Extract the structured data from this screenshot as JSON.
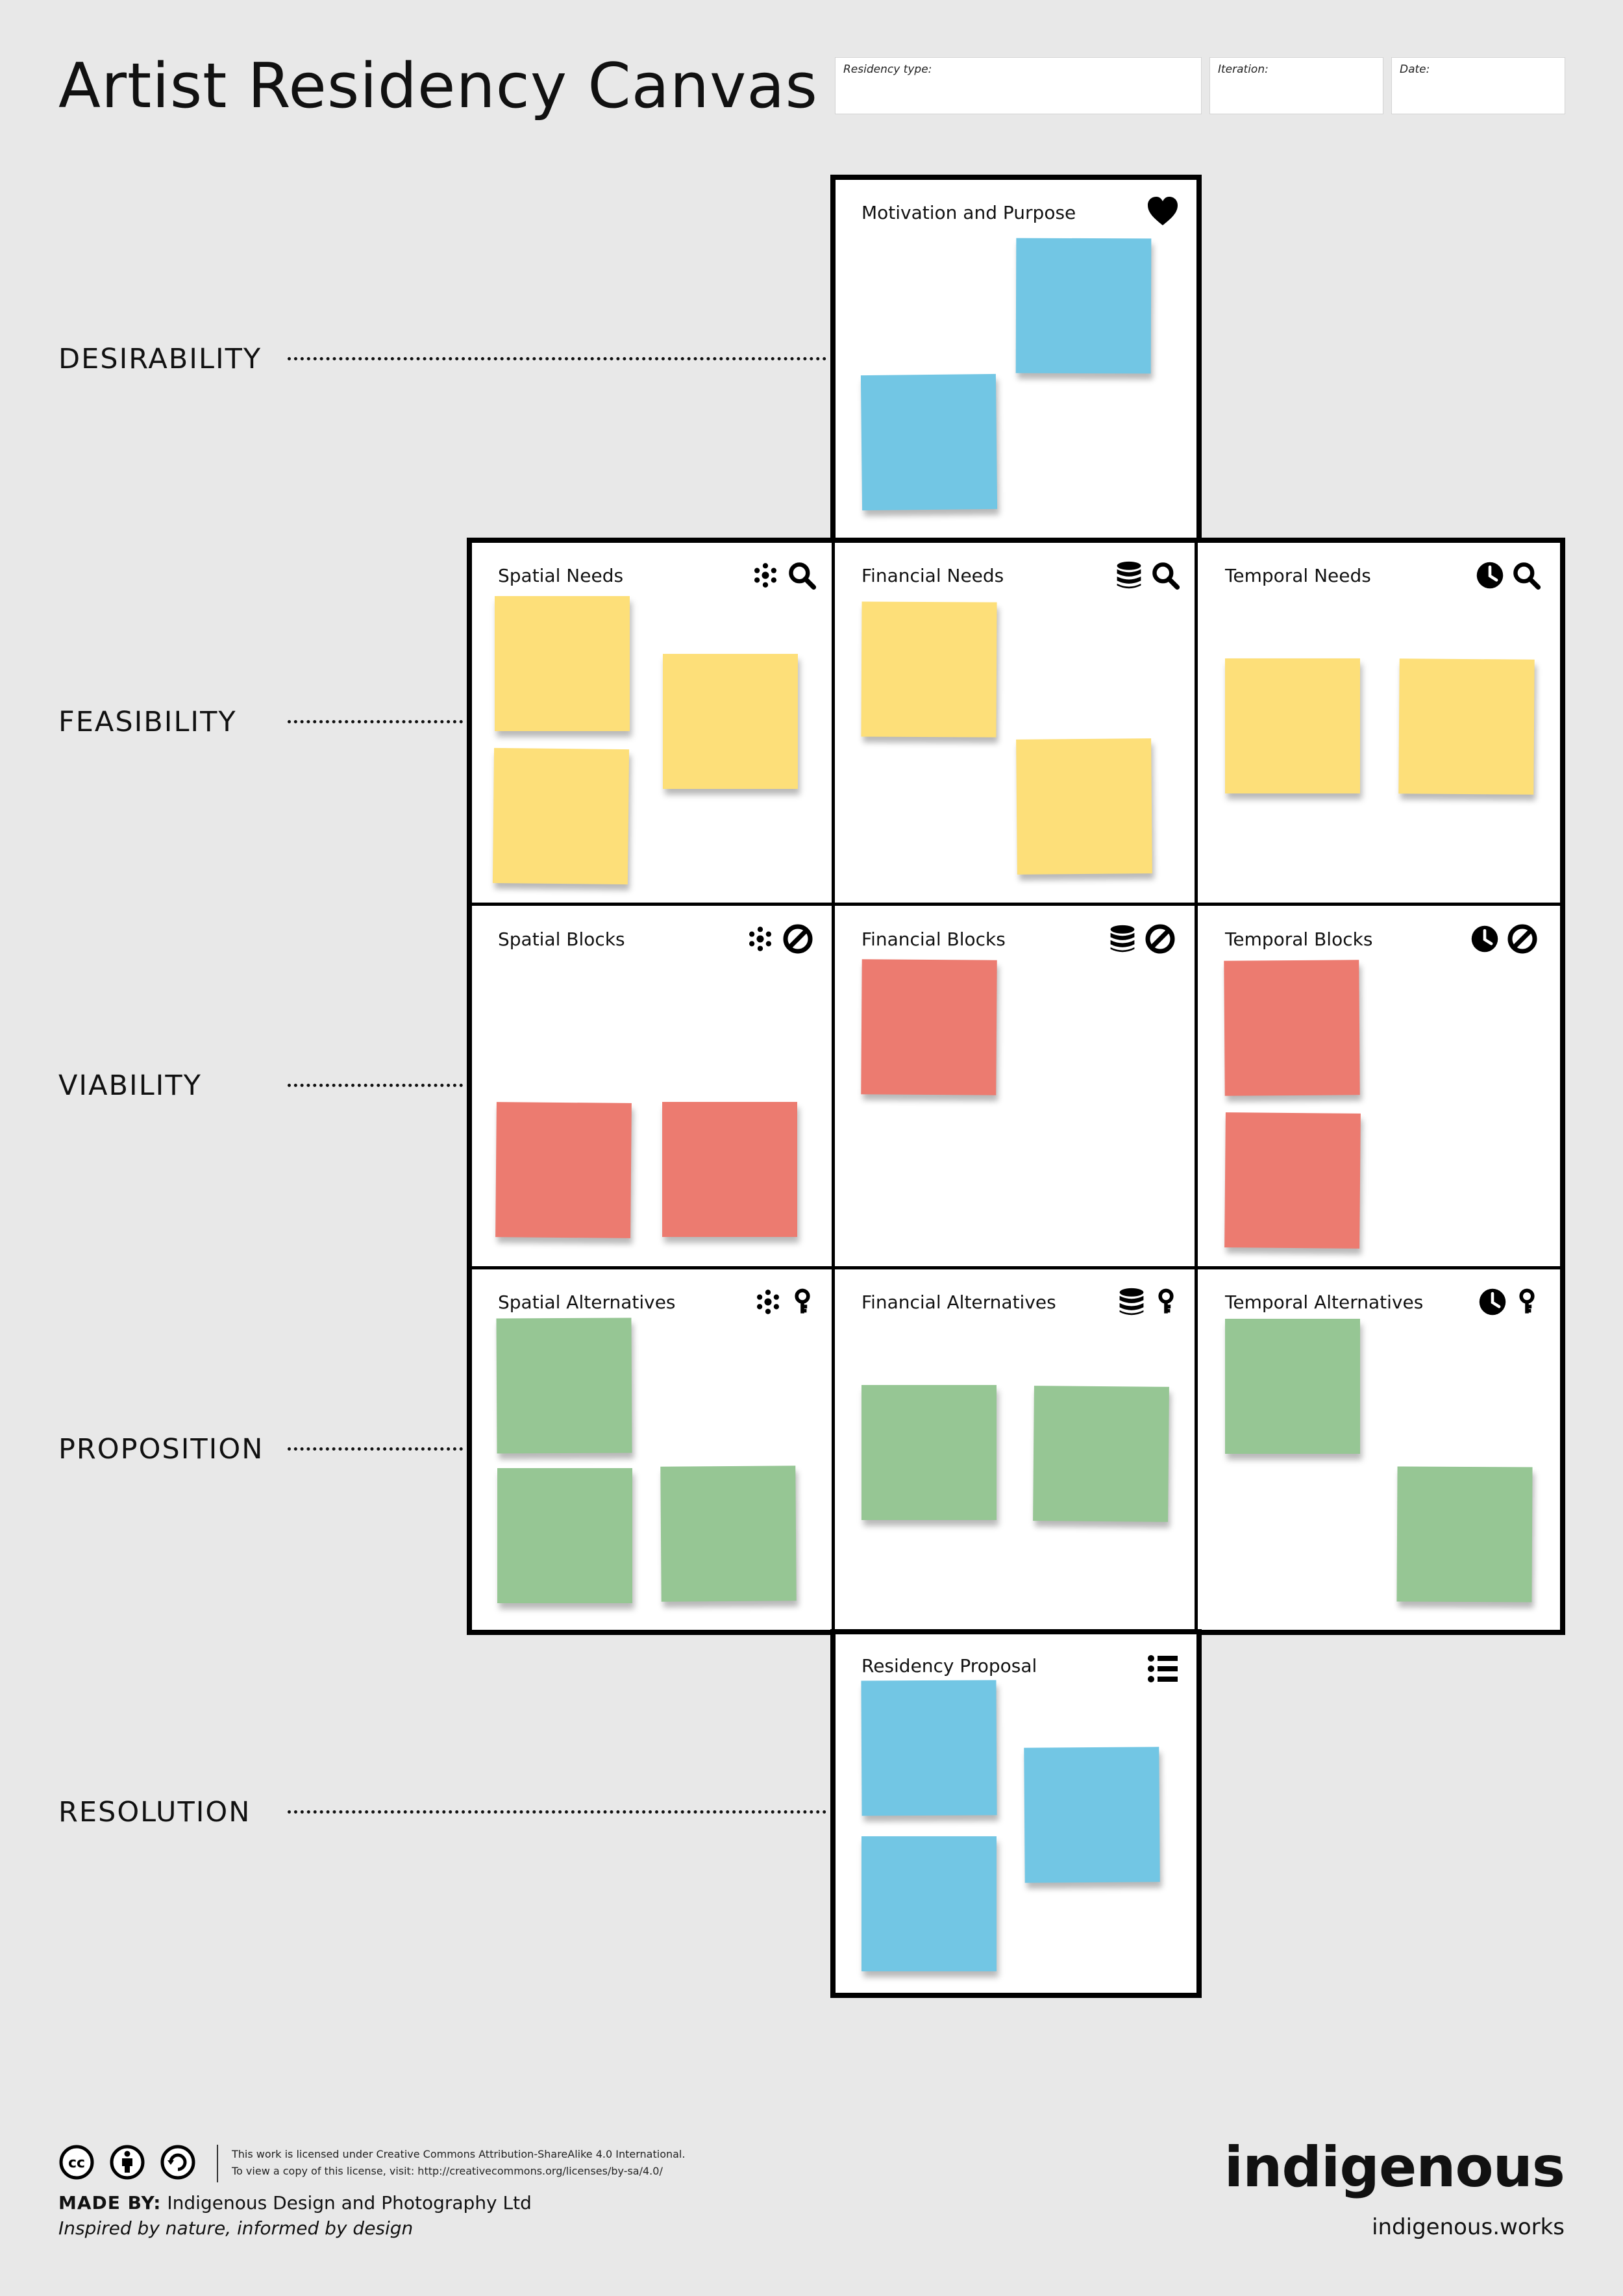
{
  "header": {
    "title": "Artist Residency Canvas",
    "fields": [
      {
        "label": "Residency type:",
        "value": ""
      },
      {
        "label": "Iteration:",
        "value": ""
      },
      {
        "label": "Date:",
        "value": ""
      }
    ]
  },
  "rows": [
    "DESIRABILITY",
    "FEASIBILITY",
    "VIABILITY",
    "PROPOSITION",
    "RESOLUTION"
  ],
  "cells": {
    "motivation": {
      "title": "Motivation and Purpose",
      "icons": [
        "heart-icon"
      ],
      "notes": 2,
      "color": "#72c6e4"
    },
    "spatial_needs": {
      "title": "Spatial Needs",
      "icons": [
        "dots-cluster-icon",
        "magnifier-icon"
      ],
      "notes": 3,
      "color": "#fddf79"
    },
    "financial_needs": {
      "title": "Financial Needs",
      "icons": [
        "coin-stack-icon",
        "magnifier-icon"
      ],
      "notes": 2,
      "color": "#fddf79"
    },
    "temporal_needs": {
      "title": "Temporal Needs",
      "icons": [
        "clock-icon",
        "magnifier-icon"
      ],
      "notes": 2,
      "color": "#fddf79"
    },
    "spatial_blocks": {
      "title": "Spatial Blocks",
      "icons": [
        "dots-cluster-icon",
        "prohibited-icon"
      ],
      "notes": 2,
      "color": "#ec7b70"
    },
    "financial_blocks": {
      "title": "Financial Blocks",
      "icons": [
        "coin-stack-icon",
        "prohibited-icon"
      ],
      "notes": 1,
      "color": "#ec7b70"
    },
    "temporal_blocks": {
      "title": "Temporal Blocks",
      "icons": [
        "clock-icon",
        "prohibited-icon"
      ],
      "notes": 2,
      "color": "#ec7b70"
    },
    "spatial_alternatives": {
      "title": "Spatial Alternatives",
      "icons": [
        "dots-cluster-icon",
        "key-icon"
      ],
      "notes": 3,
      "color": "#96c694"
    },
    "financial_alternatives": {
      "title": "Financial Alternatives",
      "icons": [
        "coin-stack-icon",
        "key-icon"
      ],
      "notes": 2,
      "color": "#96c694"
    },
    "temporal_alternatives": {
      "title": "Temporal Alternatives",
      "icons": [
        "clock-icon",
        "key-icon"
      ],
      "notes": 2,
      "color": "#96c694"
    },
    "residency_proposal": {
      "title": "Residency Proposal",
      "icons": [
        "list-icon"
      ],
      "notes": 3,
      "color": "#72c6e4"
    }
  },
  "footer": {
    "license_icons": [
      "cc-icon",
      "attribution-icon",
      "sharealike-icon"
    ],
    "license_line1": "This work is licensed under Creative Commons Attribution-ShareAlike 4.0 International.",
    "license_line2": "To view a copy of this license, visit: http://creativecommons.org/licenses/by-sa/4.0/",
    "made_by_label": "MADE BY:",
    "made_by_value": "Indigenous Design and Photography Ltd",
    "tagline": "Inspired by nature, informed by design",
    "brand": "indigenous",
    "brand_url": "indigenous.works"
  }
}
